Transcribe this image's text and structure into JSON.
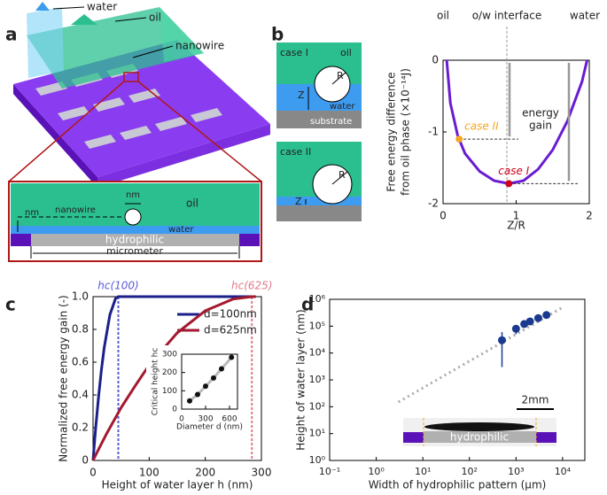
{
  "panel_labels": [
    "a",
    "b",
    "c",
    "d"
  ],
  "schematic_a": {
    "labels": [
      "water",
      "oil",
      "nanowire"
    ],
    "cross_section": {
      "nm_top": "nm",
      "nanowire": "nanowire",
      "nm_left": "nm",
      "oil": "oil",
      "water": "water",
      "hydrophilic": "hydrophilic",
      "micrometer": "micrometer"
    }
  },
  "schematic_b": {
    "case1": {
      "title": "case I",
      "oil": "oil",
      "Z": "Z",
      "R": "R",
      "water": "water",
      "substrate": "substrate"
    },
    "case2": {
      "title": "case II",
      "R": "R",
      "Z": "Z"
    }
  },
  "chart_data": [
    {
      "type": "line",
      "xlabel": "Z/R",
      "ylabel": [
        "Free energy difference",
        "from oil phase (×10⁻¹⁴J)"
      ],
      "top_labels": [
        "oil",
        "o/w interface",
        "water"
      ],
      "annotation": [
        "energy",
        "gain"
      ],
      "xlim": [
        0,
        2
      ],
      "ylim": [
        -2,
        0
      ],
      "xticks": [
        0,
        1,
        2
      ],
      "yticks": [
        0,
        -1,
        -2
      ],
      "color": "#6a1bd1",
      "x": [
        0.05,
        0.1,
        0.2,
        0.3,
        0.5,
        0.7,
        0.9,
        1.1,
        1.3,
        1.5,
        1.7,
        1.9,
        1.97
      ],
      "values": [
        0,
        -0.6,
        -1.05,
        -1.3,
        -1.55,
        -1.68,
        -1.72,
        -1.68,
        -1.52,
        -1.25,
        -0.85,
        -0.3,
        0
      ],
      "points": [
        {
          "label": "case II",
          "x": 0.22,
          "value": -1.1,
          "color": "#f5a623"
        },
        {
          "label": "case I",
          "x": 0.9,
          "value": -1.72,
          "color": "#d0021b"
        }
      ]
    },
    {
      "type": "line",
      "xlabel": "Height of water layer h (nm)",
      "ylabel": "Normalized free energy gain (-)",
      "xlim": [
        0,
        300
      ],
      "ylim": [
        0,
        1
      ],
      "xticks": [
        0,
        100,
        200,
        300
      ],
      "yticks": [
        0,
        0.2,
        0.4,
        0.6,
        0.8,
        {
          "value": 1,
          "label": "1.0"
        }
      ],
      "series": [
        {
          "name": "d=100nm",
          "color": "#1c1f8a",
          "x": [
            0,
            2,
            5,
            10,
            15,
            20,
            30,
            40,
            45,
            290
          ],
          "values": [
            0,
            0.087,
            0.21,
            0.395,
            0.556,
            0.691,
            0.889,
            0.988,
            1,
            1
          ]
        },
        {
          "name": "d=625nm",
          "color": "#a3192f",
          "x": [
            0,
            10,
            25,
            50,
            75,
            100,
            150,
            200,
            250,
            283,
            290
          ],
          "values": [
            0,
            0.069,
            0.169,
            0.322,
            0.455,
            0.582,
            0.779,
            0.914,
            0.986,
            1,
            1
          ]
        }
      ],
      "thresholds": [
        {
          "label": "hc(100)",
          "x": 45,
          "color": "#5b5bd6"
        },
        {
          "label": "hc(625)",
          "x": 283,
          "color": "#e07a8a"
        }
      ]
    },
    {
      "type": "scatter",
      "xlabel": "Diameter d (nm)",
      "ylabel": "Critical height hc",
      "xlim": [
        0,
        700
      ],
      "ylim": [
        0,
        300
      ],
      "xticks": [
        0,
        300,
        600
      ],
      "yticks": [
        0,
        100,
        200,
        300
      ],
      "x": [
        100,
        200,
        300,
        400,
        500,
        625
      ],
      "values": [
        45,
        80,
        125,
        170,
        220,
        283
      ],
      "color": "#111"
    },
    {
      "type": "scatter",
      "xscale": "log",
      "yscale": "log",
      "xlabel": "Width of hydrophilic pattern (μm)",
      "ylabel": "Height of water layer (nm)",
      "xlim": [
        0.1,
        30000
      ],
      "ylim": [
        1,
        1000000
      ],
      "xticks": [
        {
          "value": 0.1,
          "label": "10⁻¹"
        },
        {
          "value": 1,
          "label": "10⁰"
        },
        {
          "value": 10,
          "label": "10¹"
        },
        {
          "value": 100,
          "label": "10²"
        },
        {
          "value": 1000,
          "label": "10³"
        },
        {
          "value": 10000,
          "label": "10⁴"
        }
      ],
      "yticks": [
        {
          "value": 1,
          "label": "10⁰"
        },
        {
          "value": 10,
          "label": "10¹"
        },
        {
          "value": 100,
          "label": "10²"
        },
        {
          "value": 1000,
          "label": "10³"
        },
        {
          "value": 10000,
          "label": "10⁴"
        },
        {
          "value": 100000,
          "label": "10⁵"
        },
        {
          "value": 1000000,
          "label": "10⁶"
        }
      ],
      "color": "#1a3a8f",
      "x": [
        500,
        1000,
        1500,
        2000,
        3000,
        4500
      ],
      "values": [
        30000,
        80000,
        120000,
        150000,
        200000,
        260000
      ],
      "yerr": [
        [
          27000,
          30000
        ],
        [
          30000,
          20000
        ],
        [
          15000,
          15000
        ],
        [
          15000,
          15000
        ],
        [
          15000,
          15000
        ],
        [
          15000,
          15000
        ]
      ],
      "fit": {
        "color": "#aaaaaa",
        "x": [
          3,
          10000
        ],
        "values": [
          150,
          500000
        ]
      },
      "inset": {
        "scale_bar": "2mm",
        "pattern": "hydrophilic"
      }
    }
  ]
}
